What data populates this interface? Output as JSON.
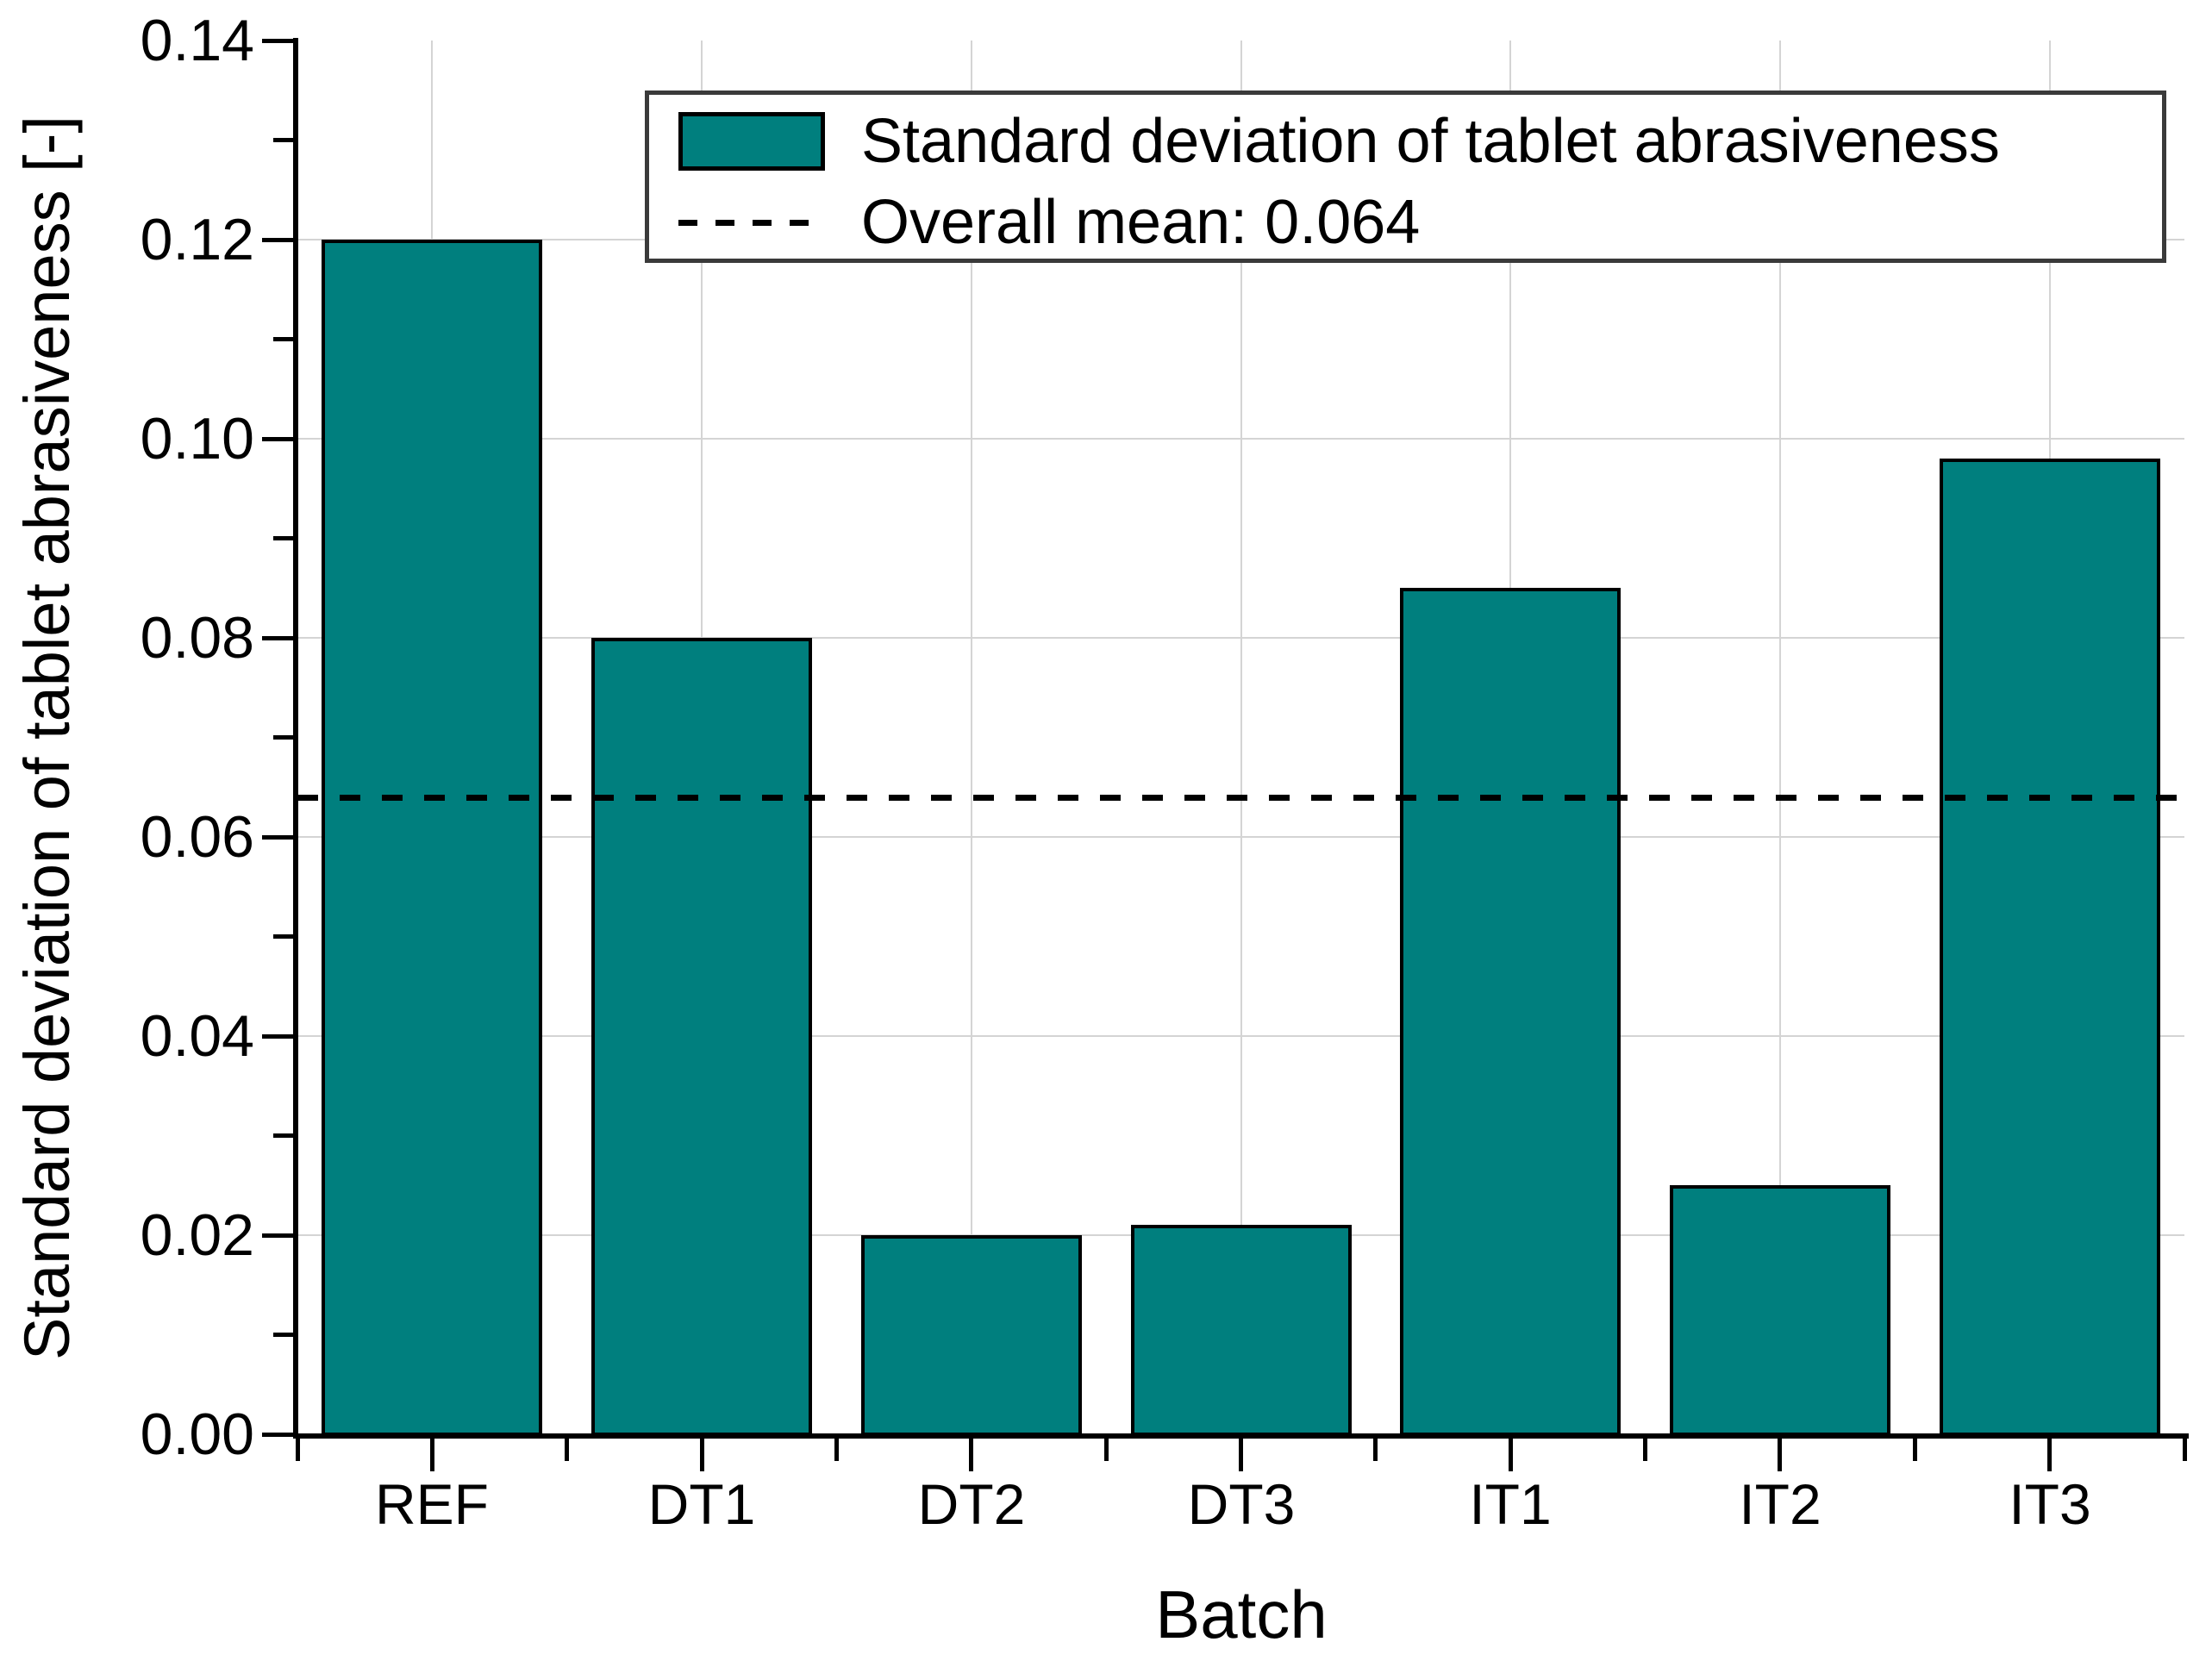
{
  "chart_data": {
    "type": "bar",
    "categories": [
      "REF",
      "DT1",
      "DT2",
      "DT3",
      "IT1",
      "IT2",
      "IT3"
    ],
    "values": [
      0.12,
      0.08,
      0.02,
      0.021,
      0.085,
      0.025,
      0.098
    ],
    "series_name": "Standard deviation of tablet abrasiveness",
    "overall_mean": 0.064,
    "xlabel": "Batch",
    "ylabel": "Standard deviation of tablet abrasiveness [-]",
    "ylim": [
      0,
      0.14
    ],
    "ytick_values": [
      0.0,
      0.02,
      0.04,
      0.06,
      0.08,
      0.1,
      0.12,
      0.14
    ],
    "ytick_labels": [
      "0.00",
      "0.02",
      "0.04",
      "0.06",
      "0.08",
      "0.10",
      "0.12",
      "0.14"
    ],
    "yminor_step": 0.01,
    "grid": "major-horizontal-and-category-vertical",
    "legend_position": "top-center-inside",
    "colors": {
      "bar_fill": "#007f7e",
      "bar_border": "#000000",
      "gridline": "#d4d4d4",
      "axis": "#000000",
      "mean_line": "#000000",
      "legend_border": "#3a3a3a",
      "background": "#ffffff"
    }
  },
  "legend": {
    "bar_entry_label": "Standard deviation of tablet abrasiveness",
    "mean_entry_label": "Overall mean: 0.064"
  },
  "axes": {
    "x_title": "Batch",
    "y_title": "Standard deviation of tablet abrasiveness [-]"
  }
}
